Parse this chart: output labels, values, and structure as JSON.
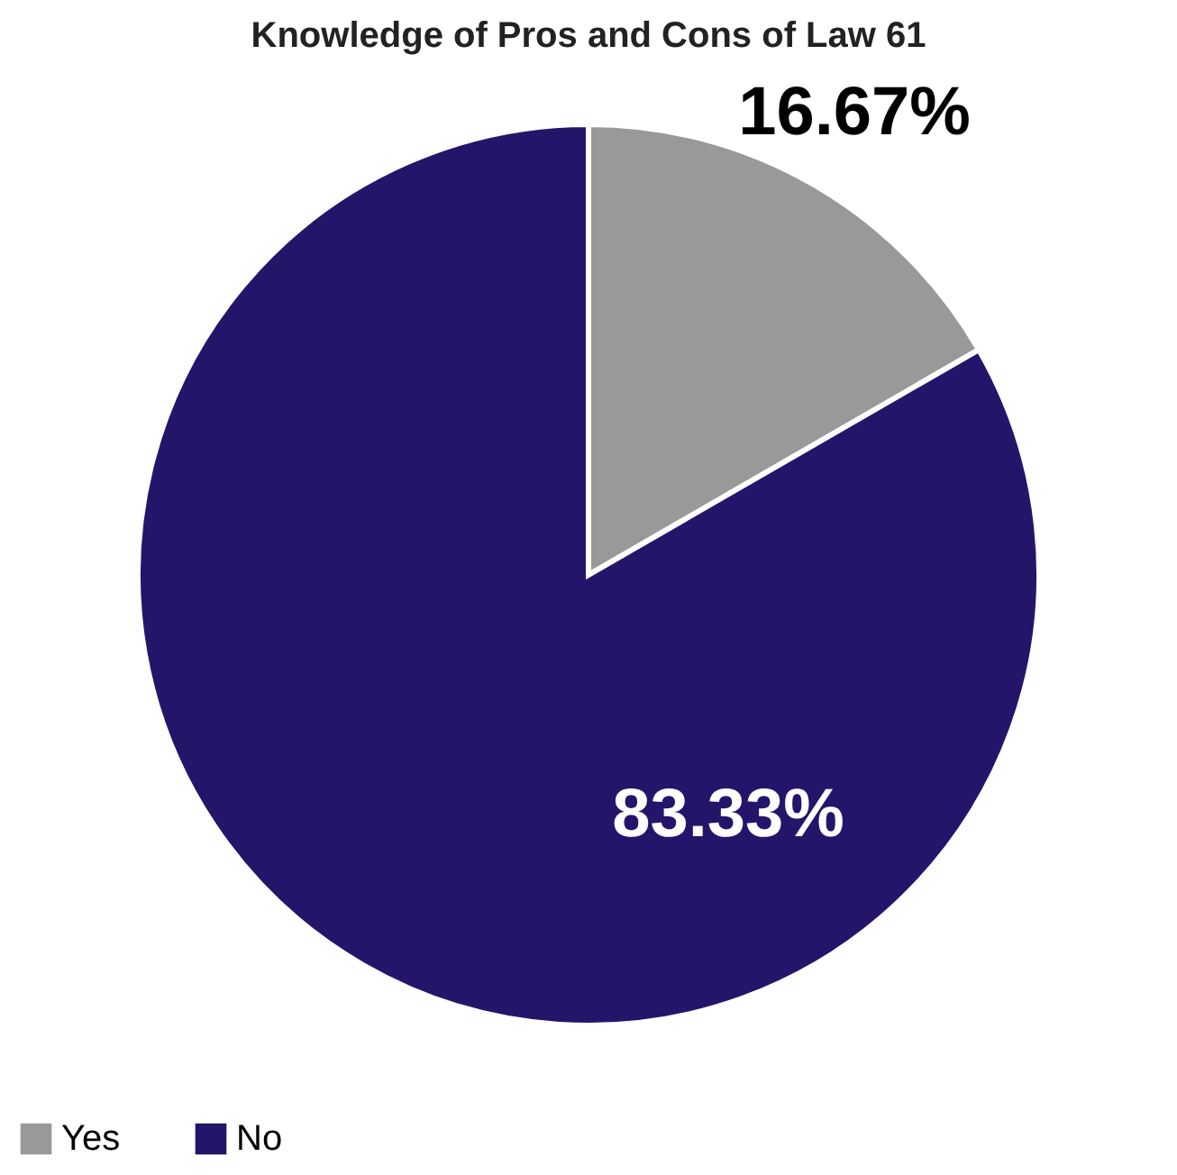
{
  "chart_data": {
    "type": "pie",
    "title": "Knowledge of Pros and Cons of Law 61",
    "categories": [
      "Yes",
      "No"
    ],
    "values": [
      16.67,
      83.33
    ],
    "colors": [
      "#999999",
      "#24156b"
    ],
    "value_labels": [
      "16.67%",
      "83.33%"
    ],
    "legend": "bottom"
  }
}
